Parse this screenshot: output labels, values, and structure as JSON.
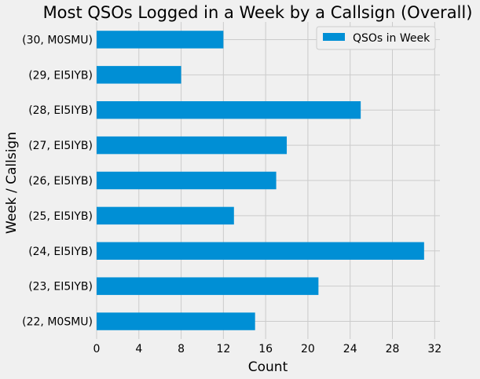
{
  "chart_data": {
    "type": "bar",
    "orientation": "horizontal",
    "title": "Most QSOs Logged in a Week by a Callsign (Overall)",
    "xlabel": "Count",
    "ylabel": "Week / Callsign",
    "xlim": [
      0,
      32.5
    ],
    "xticks": [
      "0",
      "4",
      "8",
      "12",
      "16",
      "20",
      "24",
      "28",
      "32"
    ],
    "categories": [
      "(30, M0SMU)",
      "(29, EI5IYB)",
      "(28, EI5IYB)",
      "(27, EI5IYB)",
      "(26, EI5IYB)",
      "(25, EI5IYB)",
      "(24, EI5IYB)",
      "(23, EI5IYB)",
      "(22, M0SMU)"
    ],
    "series": [
      {
        "name": "QSOs in Week",
        "values": [
          12,
          8,
          25,
          18,
          17,
          13,
          31,
          21,
          15
        ],
        "color": "#008fd5"
      }
    ],
    "grid": true,
    "legend_position": "top-right",
    "colors": {
      "background": "#f0f0f0",
      "grid": "#cbcbcb",
      "bar": "#008fd5"
    }
  }
}
